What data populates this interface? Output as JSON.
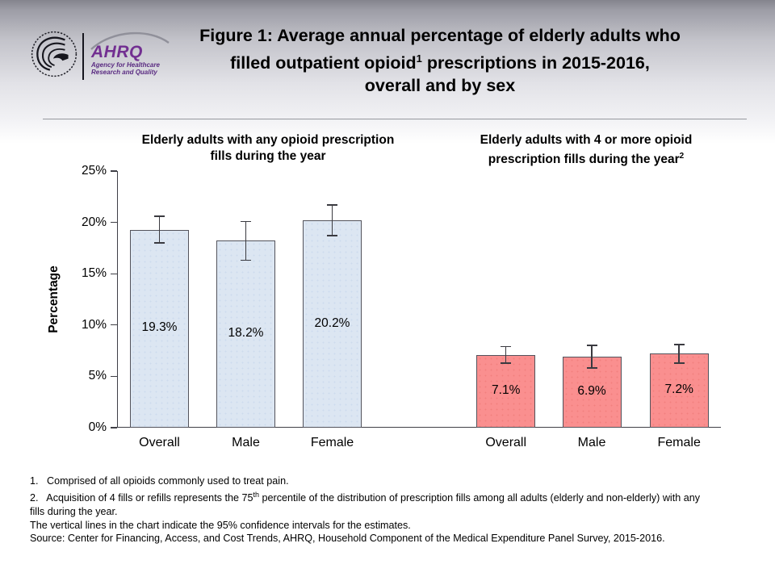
{
  "logo": {
    "org_acronym": "AHRQ",
    "org_name_line1": "Agency for Healthcare",
    "org_name_line2": "Research and Quality",
    "brand_purple": "#722f91",
    "seal": "hhs-eagle-seal"
  },
  "header": {
    "title_line1": "Figure 1: Average annual percentage of elderly adults who",
    "title_line2_pre": "filled outpatient opioid",
    "title_line2_sup": "1",
    "title_line2_post": " prescriptions in 2015-2016,",
    "title_line3": "overall and by sex"
  },
  "chart": {
    "left_subtitle_line1": "Elderly adults with any opioid prescription",
    "left_subtitle_line2": "fills during the year",
    "right_subtitle_line1": "Elderly adults with 4 or more opioid",
    "right_subtitle_line2": "prescription fills during the year",
    "right_subtitle_sup": "2",
    "y_axis_label": "Percentage"
  },
  "chart_data": {
    "type": "bar",
    "title": "Figure 1: Average annual percentage of elderly adults who filled outpatient opioid(1) prescriptions in 2015-2016, overall and by sex",
    "ylabel": "Percentage",
    "ylim": [
      0,
      25
    ],
    "yticks": [
      "0%",
      "5%",
      "10%",
      "15%",
      "20%",
      "25%"
    ],
    "grid": false,
    "legend": "none",
    "error_bars": "95% confidence intervals",
    "groups": [
      {
        "key": "any-fills",
        "subtitle": "Elderly adults with any opioid prescription fills during the year",
        "categories": [
          "Overall",
          "Male",
          "Female"
        ],
        "values": [
          19.3,
          18.2,
          20.2
        ],
        "labels": [
          "19.3%",
          "18.2%",
          "20.2%"
        ],
        "ci_halfwidth": [
          1.3,
          1.9,
          1.5
        ],
        "bar_color": "#dce6f2",
        "bar_dot_color": "#cddbed",
        "bar_border_color": "#53535c"
      },
      {
        "key": "four-plus-fills",
        "subtitle": "Elderly adults with 4 or more opioid prescription fills during the year(2)",
        "categories": [
          "Overall",
          "Male",
          "Female"
        ],
        "values": [
          7.1,
          6.9,
          7.2
        ],
        "labels": [
          "7.1%",
          "6.9%",
          "7.2%"
        ],
        "ci_halfwidth": [
          0.8,
          1.1,
          0.9
        ],
        "bar_color": "#fa8f8f",
        "bar_dot_color": "#f2807f",
        "bar_border_color": "#53535c"
      }
    ],
    "axis_color": "#3f3f46",
    "error_bar_color": "#3a3a40"
  },
  "footnotes": {
    "line1": "1.   Comprised of all opioids commonly used to treat pain.",
    "line2_pre": "2.   Acquisition of 4 fills or refills represents the 75",
    "line2_sup": "th",
    "line2_post": " percentile of the distribution of prescription fills among all adults (elderly and non-elderly) with any",
    "line2_cont": "fills during the year.",
    "line3": "The vertical lines in the chart indicate the 95% confidence intervals for the estimates.",
    "line4": "Source: Center for Financing, Access, and Cost Trends, AHRQ, Household Component of the Medical Expenditure Panel Survey, 2015-2016."
  }
}
